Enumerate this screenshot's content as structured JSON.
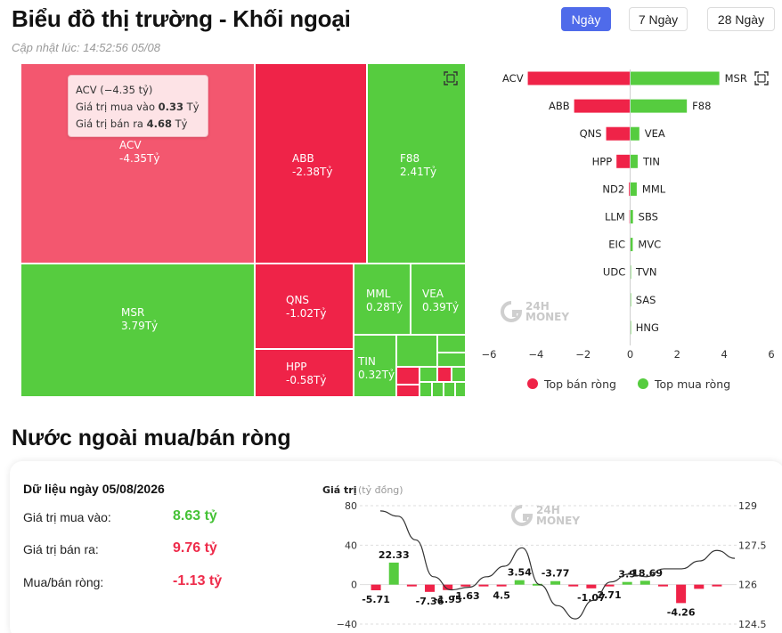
{
  "header": {
    "title": "Biểu đồ thị trường - Khối ngoại",
    "updated": "Cập nhật lúc: 14:52:56 05/08",
    "tabs": [
      "Ngày",
      "7 Ngày",
      "28 Ngày"
    ],
    "active_tab": "Ngày"
  },
  "treemap": {
    "tiles": [
      {
        "code": "ACV",
        "value": "-4.35Tỷ",
        "side": "sell",
        "highlighted": true
      },
      {
        "code": "ABB",
        "value": "-2.38Tỷ",
        "side": "sell"
      },
      {
        "code": "F88",
        "value": "2.41Tỷ",
        "side": "buy"
      },
      {
        "code": "MSR",
        "value": "3.79Tỷ",
        "side": "buy"
      },
      {
        "code": "QNS",
        "value": "-1.02Tỷ",
        "side": "sell"
      },
      {
        "code": "MML",
        "value": "0.28Tỷ",
        "side": "buy"
      },
      {
        "code": "VEA",
        "value": "0.39Tỷ",
        "side": "buy"
      },
      {
        "code": "HPP",
        "value": "-0.58Tỷ",
        "side": "sell"
      },
      {
        "code": "TIN",
        "value": "0.32Tỷ",
        "side": "buy"
      }
    ],
    "tooltip": {
      "line1": "ACV (−4.35 tỷ)",
      "buy_label": "Giá trị mua vào",
      "buy_value": "0.33",
      "sell_label": "Giá trị bán ra",
      "sell_value": "4.68",
      "unit": "Tỷ"
    }
  },
  "watermark": {
    "line1": "24H",
    "line2": "MONEY"
  },
  "colors": {
    "sell": "#ef2348",
    "buy": "#56cc3f",
    "accent": "#4f6bea",
    "line": "#333333"
  },
  "icons": {
    "expand": "expand-icon"
  },
  "chart_data": [
    {
      "type": "bar",
      "orientation": "horizontal-diverging",
      "rows": [
        {
          "sell": "ACV",
          "sell_value": -4.35,
          "buy": "MSR",
          "buy_value": 3.79
        },
        {
          "sell": "ABB",
          "sell_value": -2.38,
          "buy": "F88",
          "buy_value": 2.41
        },
        {
          "sell": "QNS",
          "sell_value": -1.02,
          "buy": "VEA",
          "buy_value": 0.39
        },
        {
          "sell": "HPP",
          "sell_value": -0.58,
          "buy": "TIN",
          "buy_value": 0.32
        },
        {
          "sell": "ND2",
          "sell_value": -0.05,
          "buy": "MML",
          "buy_value": 0.28
        },
        {
          "sell": "LLM",
          "sell_value": -0.03,
          "buy": "SBS",
          "buy_value": 0.12
        },
        {
          "sell": "EIC",
          "sell_value": -0.02,
          "buy": "MVC",
          "buy_value": 0.11
        },
        {
          "sell": "UDC",
          "sell_value": -0.01,
          "buy": "TVN",
          "buy_value": 0.02
        },
        {
          "sell": "",
          "sell_value": 0,
          "buy": "SAS",
          "buy_value": 0.01
        },
        {
          "sell": "",
          "sell_value": 0,
          "buy": "HNG",
          "buy_value": 0.01
        }
      ],
      "xlim": [
        -6,
        6
      ],
      "xticks": [
        "−6",
        "−4",
        "−2",
        "0",
        "2",
        "4",
        "6"
      ],
      "legend": [
        {
          "name": "Top bán ròng",
          "color": "#ef2348"
        },
        {
          "name": "Top mua ròng",
          "color": "#56cc3f"
        }
      ],
      "legend_position": "bottom"
    },
    {
      "type": "bar+line",
      "ylabel": "Giá trị",
      "yunit": "(tỷ đồng)",
      "ylim": [
        -40,
        80
      ],
      "yticks": [
        "80",
        "40",
        "0",
        "−40"
      ],
      "y2lim": [
        124.5,
        129
      ],
      "y2ticks": [
        "129",
        "127.5",
        "126",
        "124.5"
      ],
      "bars": [
        -5.71,
        22.33,
        -0.3,
        -7.36,
        -5.5,
        -1.95,
        -0.5,
        -1.63,
        4.5,
        0.8,
        3.54,
        -0.4,
        -3.77,
        -1.07,
        2.71,
        3.9,
        -0.3,
        -18.69,
        -4.26,
        -1.5
      ],
      "bar_labels": [
        "-5.71",
        "22.33",
        "-7.36",
        "-1.95",
        "-1.63",
        "4.5",
        "3.54",
        "-3.77",
        "-1.07",
        "2.71",
        "3.9",
        "-18.69",
        "-4.26"
      ],
      "line": [
        128.8,
        128.6,
        127.7,
        126.3,
        125.8,
        125.9,
        126.3,
        126.7,
        127.4,
        126.0,
        125.2,
        124.7,
        125.4,
        126.1,
        126.4,
        126.3,
        126.6,
        126.6,
        126.9,
        127.3,
        127.0
      ]
    }
  ],
  "net": {
    "section_title": "Nước ngoài mua/bán ròng",
    "date_title": "Dữ liệu ngày 05/08/2026",
    "buy_label": "Giá trị mua vào:",
    "buy_value": "8.63 tỷ",
    "sell_label": "Giá trị bán ra:",
    "sell_value": "9.76 tỷ",
    "net_label": "Mua/bán ròng:",
    "net_value": "-1.13 tỷ"
  }
}
